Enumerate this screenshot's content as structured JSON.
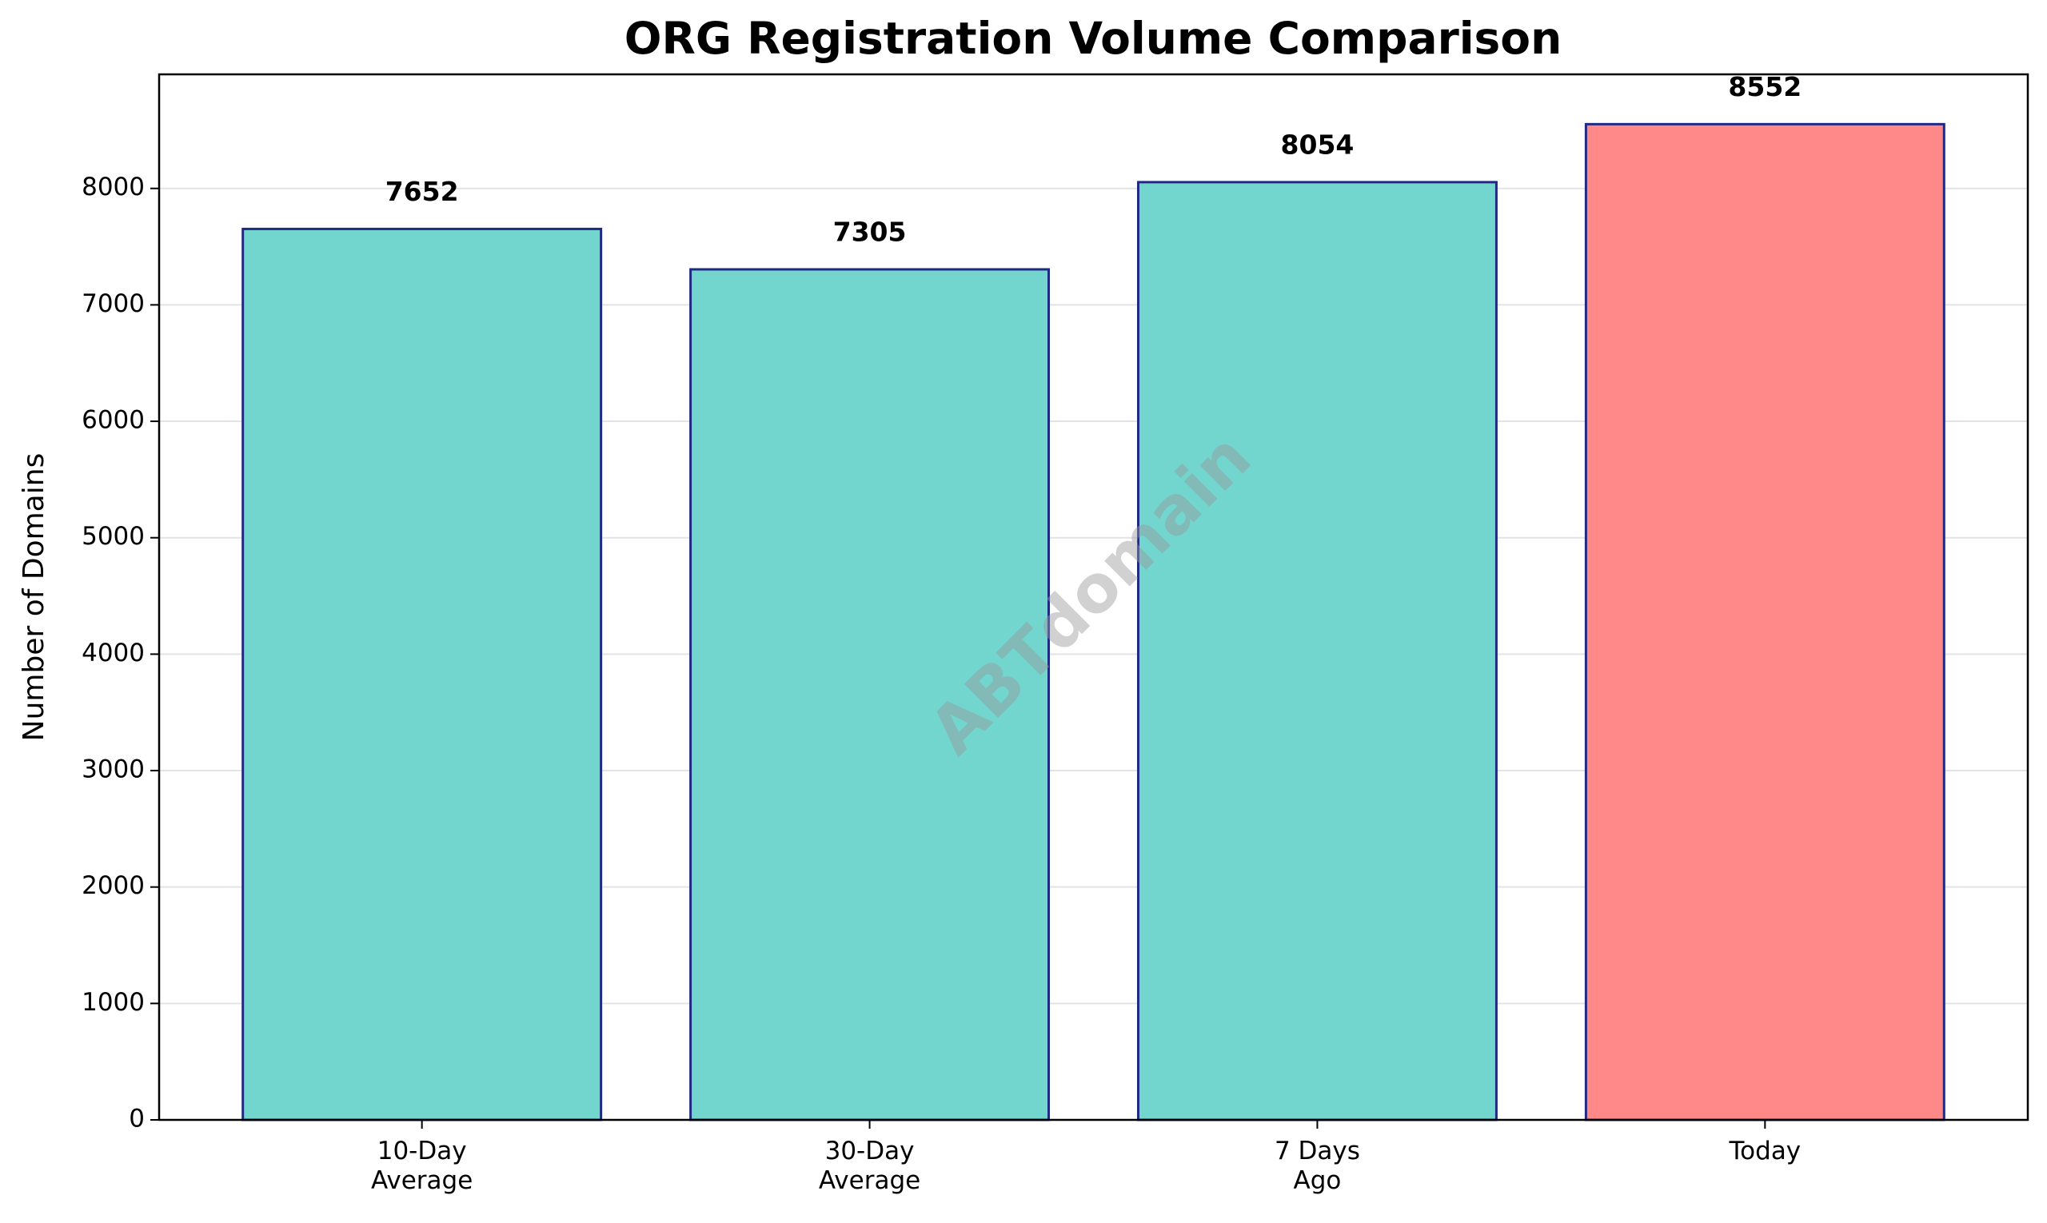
{
  "chart_data": {
    "type": "bar",
    "title": "ORG Registration Volume Comparison",
    "y_label": "Number of Domains",
    "watermark": "ABTdomain",
    "categories": [
      "10-Day\nAverage",
      "30-Day\nAverage",
      "7 Days\nAgo",
      "Today"
    ],
    "values": [
      7652,
      7305,
      8054,
      8552
    ],
    "colors": [
      "#72d6cf",
      "#72d6cf",
      "#72d6cf",
      "#ff8888"
    ],
    "edge_color": "#1f2a80",
    "ylim": [
      0,
      8980
    ],
    "yticks": [
      0,
      1000,
      2000,
      3000,
      4000,
      5000,
      6000,
      7000,
      8000
    ],
    "grid": true
  }
}
